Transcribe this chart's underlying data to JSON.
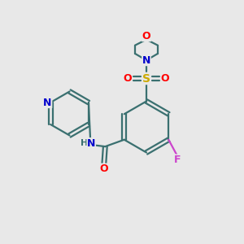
{
  "bg_color": "#e8e8e8",
  "bond_color": "#3a7070",
  "atom_colors": {
    "O": "#ff0000",
    "N": "#0000cc",
    "S": "#ccaa00",
    "F": "#cc44cc",
    "C": "#3a7070"
  },
  "lw": 1.6,
  "fs": 8.5
}
